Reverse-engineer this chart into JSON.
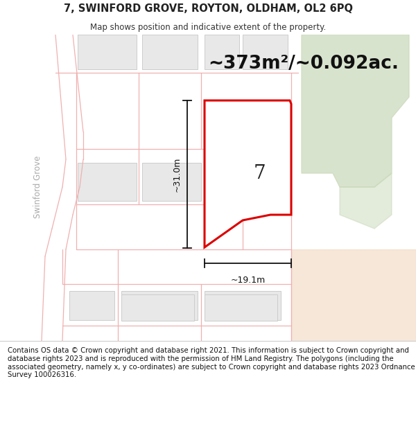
{
  "title_line1": "7, SWINFORD GROVE, ROYTON, OLDHAM, OL2 6PQ",
  "title_line2": "Map shows position and indicative extent of the property.",
  "area_text": "~373m²/~0.092ac.",
  "label_7": "7",
  "dim_height": "~31.0m",
  "dim_width": "~19.1m",
  "street_label": "Swinford Grove",
  "footer_text": "Contains OS data © Crown copyright and database right 2021. This information is subject to Crown copyright and database rights 2023 and is reproduced with the permission of HM Land Registry. The polygons (including the associated geometry, namely x, y co-ordinates) are subject to Crown copyright and database rights 2023 Ordnance Survey 100026316.",
  "map_bg": "#ffffff",
  "road_line_color": "#f0b0b0",
  "building_fill": "#e8e8e8",
  "building_edge": "#cccccc",
  "red_poly_color": "#dd0000",
  "green_color1": "#c8d8b8",
  "green_color2": "#d8e8c0",
  "peach_color": "#f0d8c0",
  "street_text_color": "#aaaaaa",
  "dim_line_color": "#111111",
  "area_text_color": "#111111"
}
